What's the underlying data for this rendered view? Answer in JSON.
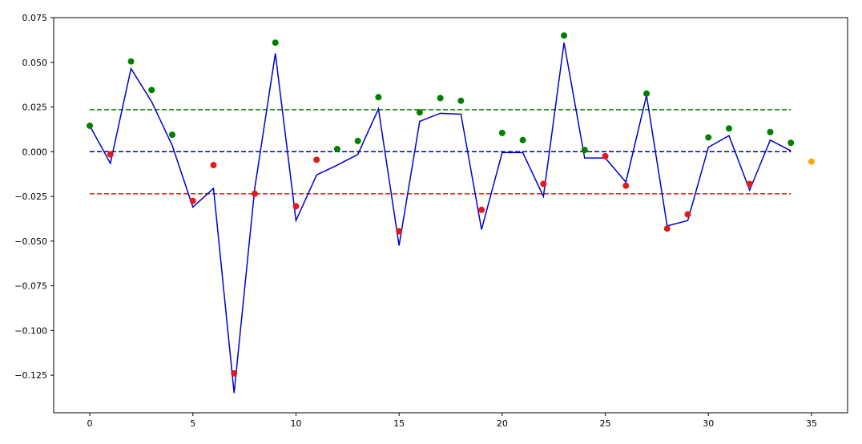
{
  "chart_data": {
    "type": "line",
    "xlim": [
      -1.75,
      36.75
    ],
    "ylim": [
      -0.146,
      0.075
    ],
    "x_ticks": [
      0,
      5,
      10,
      15,
      20,
      25,
      30,
      35
    ],
    "y_ticks": [
      0.075,
      0.05,
      0.025,
      0.0,
      -0.025,
      -0.05,
      -0.075,
      -0.1,
      -0.125
    ],
    "x_tick_labels": [
      "0",
      "5",
      "10",
      "15",
      "20",
      "25",
      "30",
      "35"
    ],
    "y_tick_labels": [
      "0.075",
      "0.050",
      "0.025",
      "0.000",
      "−0.025",
      "−0.050",
      "−0.075",
      "−0.100",
      "−0.125"
    ],
    "grid": false,
    "line_series": {
      "color": "#0000cc",
      "x": [
        0,
        1,
        2,
        3,
        4,
        5,
        6,
        7,
        8,
        9,
        10,
        11,
        12,
        13,
        14,
        15,
        16,
        17,
        18,
        19,
        20,
        21,
        22,
        23,
        24,
        25,
        26,
        27,
        28,
        29,
        30,
        31,
        32,
        33,
        34
      ],
      "y": [
        0.0145,
        -0.0065,
        0.0465,
        0.028,
        0.0035,
        -0.031,
        -0.0205,
        -0.135,
        -0.0205,
        0.055,
        -0.0385,
        -0.013,
        -0.0075,
        -0.0015,
        0.024,
        -0.0525,
        0.017,
        0.0215,
        0.021,
        -0.0435,
        -0.0005,
        -0.0005,
        -0.025,
        0.061,
        -0.0035,
        -0.0035,
        -0.017,
        0.0315,
        -0.0415,
        -0.0385,
        0.0025,
        0.009,
        -0.0215,
        0.0065,
        0.0005
      ]
    },
    "points": [
      {
        "x": 0,
        "y": 0.0145,
        "color": "#008000"
      },
      {
        "x": 1,
        "y": -0.0015,
        "color": "#e31a1c"
      },
      {
        "x": 2,
        "y": 0.0505,
        "color": "#008000"
      },
      {
        "x": 3,
        "y": 0.0345,
        "color": "#008000"
      },
      {
        "x": 4,
        "y": 0.0095,
        "color": "#008000"
      },
      {
        "x": 5,
        "y": -0.0275,
        "color": "#e31a1c"
      },
      {
        "x": 6,
        "y": -0.0075,
        "color": "#e31a1c"
      },
      {
        "x": 7,
        "y": -0.124,
        "color": "#e31a1c"
      },
      {
        "x": 8,
        "y": -0.0235,
        "color": "#e31a1c"
      },
      {
        "x": 9,
        "y": 0.061,
        "color": "#008000"
      },
      {
        "x": 10,
        "y": -0.0305,
        "color": "#e31a1c"
      },
      {
        "x": 11,
        "y": -0.0045,
        "color": "#e31a1c"
      },
      {
        "x": 12,
        "y": 0.0015,
        "color": "#008000"
      },
      {
        "x": 13,
        "y": 0.006,
        "color": "#008000"
      },
      {
        "x": 14,
        "y": 0.0305,
        "color": "#008000"
      },
      {
        "x": 15,
        "y": -0.0445,
        "color": "#e31a1c"
      },
      {
        "x": 16,
        "y": 0.022,
        "color": "#008000"
      },
      {
        "x": 17,
        "y": 0.03,
        "color": "#008000"
      },
      {
        "x": 18,
        "y": 0.0285,
        "color": "#008000"
      },
      {
        "x": 19,
        "y": -0.0325,
        "color": "#e31a1c"
      },
      {
        "x": 20,
        "y": 0.0105,
        "color": "#008000"
      },
      {
        "x": 21,
        "y": 0.0065,
        "color": "#008000"
      },
      {
        "x": 22,
        "y": -0.018,
        "color": "#e31a1c"
      },
      {
        "x": 23,
        "y": 0.065,
        "color": "#008000"
      },
      {
        "x": 24,
        "y": 0.001,
        "color": "#008000"
      },
      {
        "x": 25,
        "y": -0.0025,
        "color": "#e31a1c"
      },
      {
        "x": 26,
        "y": -0.019,
        "color": "#e31a1c"
      },
      {
        "x": 27,
        "y": 0.0325,
        "color": "#008000"
      },
      {
        "x": 28,
        "y": -0.043,
        "color": "#e31a1c"
      },
      {
        "x": 29,
        "y": -0.035,
        "color": "#e31a1c"
      },
      {
        "x": 30,
        "y": 0.008,
        "color": "#008000"
      },
      {
        "x": 31,
        "y": 0.013,
        "color": "#008000"
      },
      {
        "x": 32,
        "y": -0.018,
        "color": "#e31a1c"
      },
      {
        "x": 33,
        "y": 0.011,
        "color": "#008000"
      },
      {
        "x": 34,
        "y": 0.005,
        "color": "#008000"
      },
      {
        "x": 35,
        "y": -0.0055,
        "color": "#ffa500"
      }
    ],
    "reference_lines": [
      {
        "y": 0.0235,
        "x_from": 0,
        "x_to": 34,
        "color": "#008000",
        "style": "dashed"
      },
      {
        "y": 0.0,
        "x_from": 0,
        "x_to": 34,
        "color": "#000099",
        "style": "dashed"
      },
      {
        "y": -0.0235,
        "x_from": 0,
        "x_to": 34,
        "color": "#e31a1c",
        "style": "dashed"
      }
    ]
  }
}
